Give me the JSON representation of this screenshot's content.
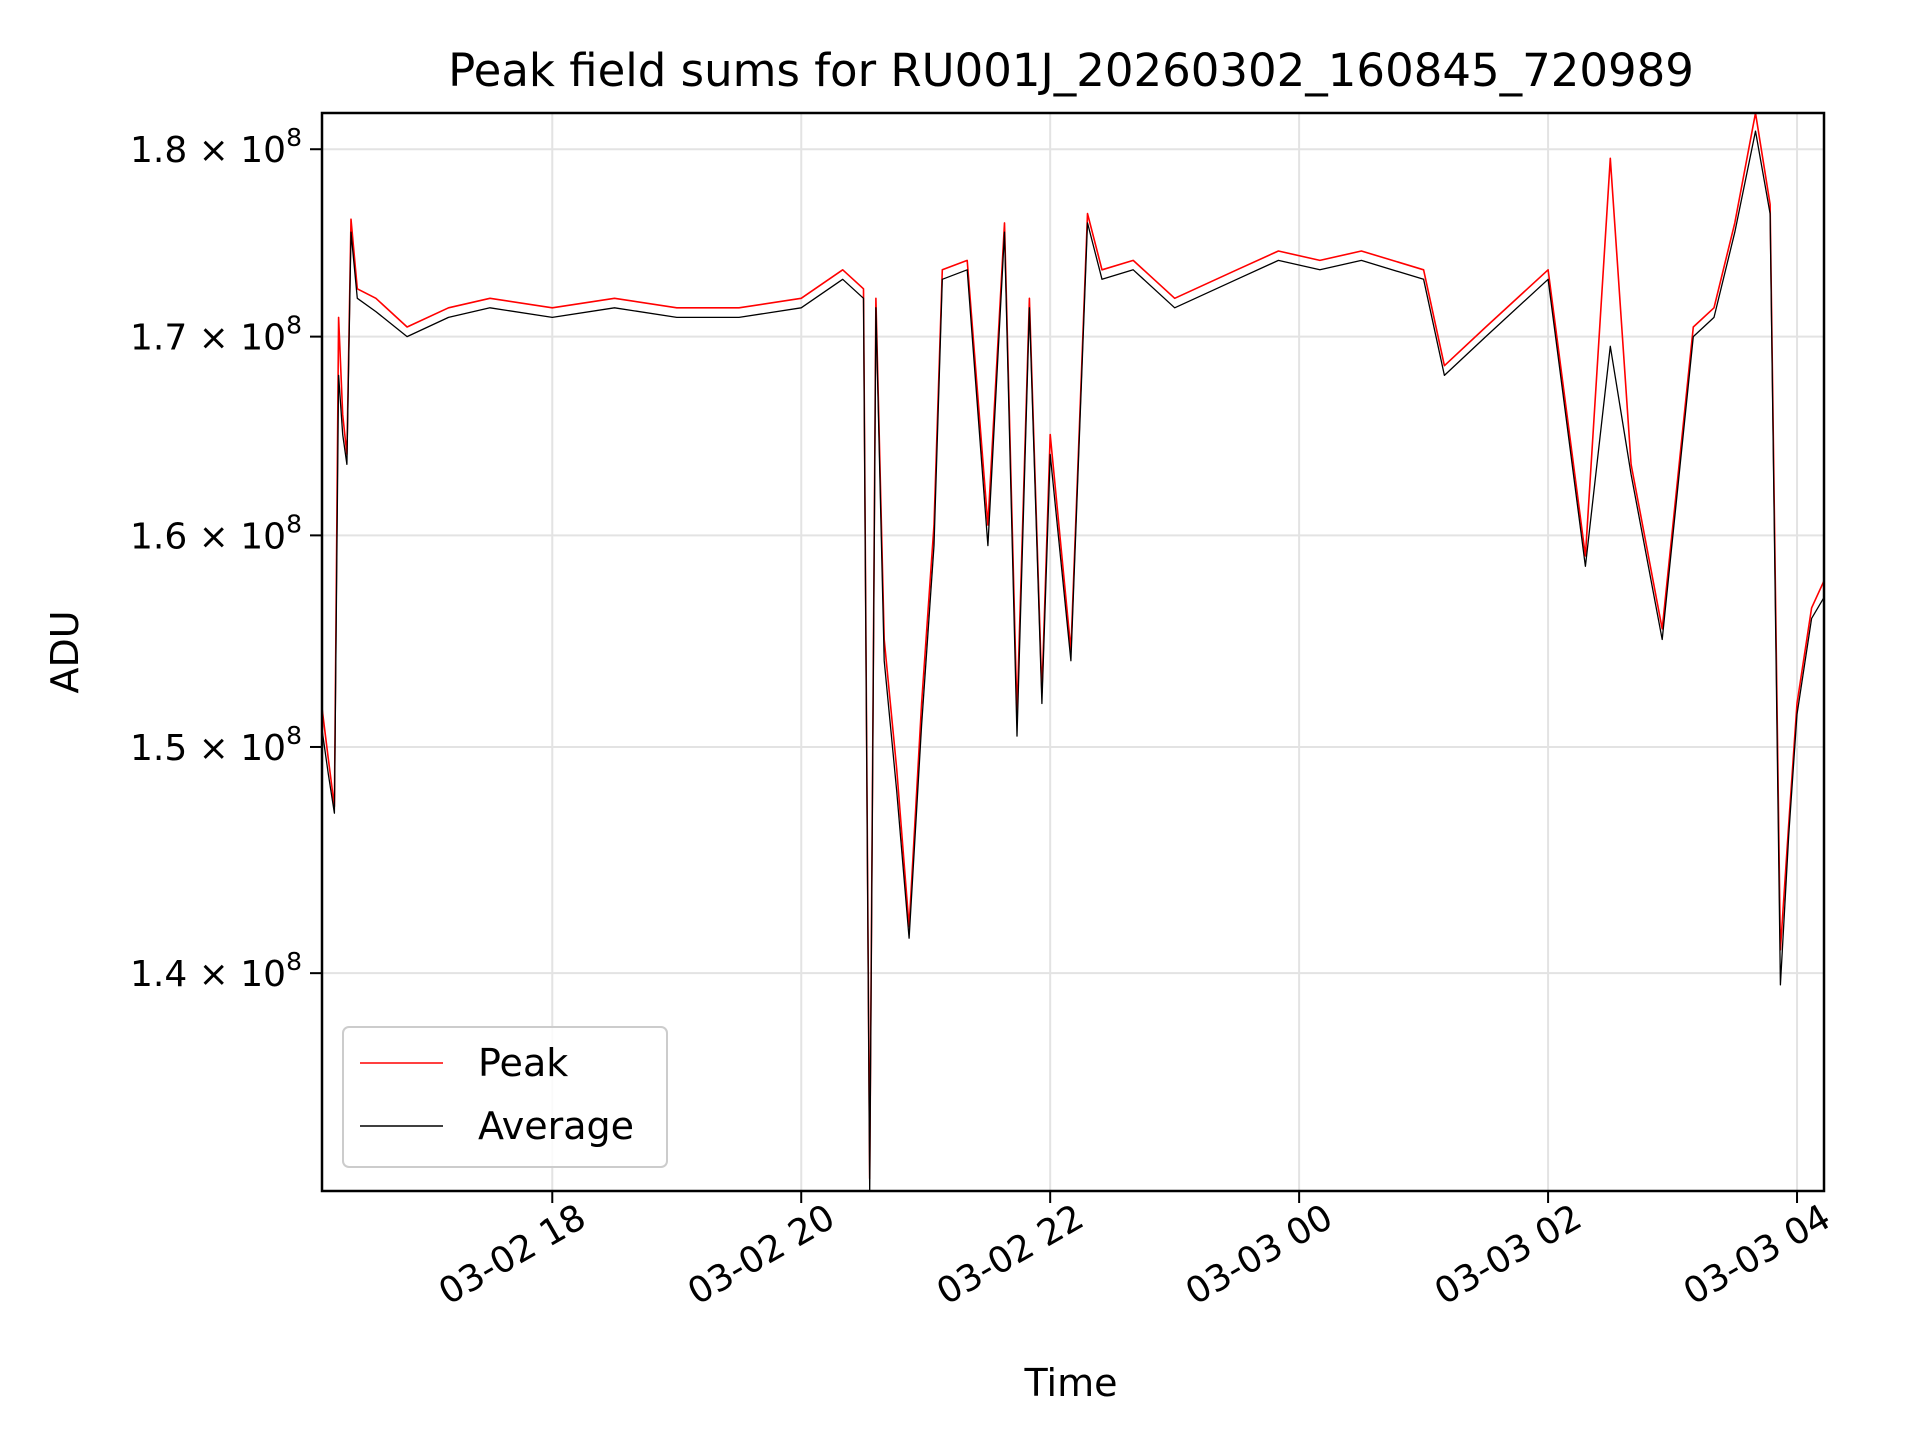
{
  "chart_data": {
    "type": "line",
    "title": "Peak field sums for RU001J_20260302_160845_720989",
    "xlabel": "Time",
    "ylabel": "ADU",
    "y_scale": "log",
    "xlim": [
      "2026-03-02 16:09",
      "2026-03-03 04:13"
    ],
    "ylim": [
      131000000,
      182000000
    ],
    "grid": true,
    "legend_position": "lower-left",
    "x_ticks": [
      {
        "value": "2026-03-02 18:00",
        "label": "03-02 18"
      },
      {
        "value": "2026-03-02 20:00",
        "label": "03-02 20"
      },
      {
        "value": "2026-03-02 22:00",
        "label": "03-02 22"
      },
      {
        "value": "2026-03-03 00:00",
        "label": "03-03 00"
      },
      {
        "value": "2026-03-03 02:00",
        "label": "03-03 02"
      },
      {
        "value": "2026-03-03 04:00",
        "label": "03-03 04"
      }
    ],
    "y_ticks": [
      {
        "value": 140000000,
        "mantissa": "1.4",
        "exponent": "8"
      },
      {
        "value": 150000000,
        "mantissa": "1.5",
        "exponent": "8"
      },
      {
        "value": 160000000,
        "mantissa": "1.6",
        "exponent": "8"
      },
      {
        "value": 170000000,
        "mantissa": "1.7",
        "exponent": "8"
      },
      {
        "value": 180000000,
        "mantissa": "1.8",
        "exponent": "8"
      }
    ],
    "series": [
      {
        "name": "Peak",
        "color": "#ff0000",
        "points": [
          [
            "2026-03-02 16:09",
            151800000
          ],
          [
            "2026-03-02 16:12",
            149500000
          ],
          [
            "2026-03-02 16:15",
            147300000
          ],
          [
            "2026-03-02 16:17",
            171000000
          ],
          [
            "2026-03-02 16:19",
            166000000
          ],
          [
            "2026-03-02 16:21",
            164000000
          ],
          [
            "2026-03-02 16:23",
            176200000
          ],
          [
            "2026-03-02 16:26",
            172500000
          ],
          [
            "2026-03-02 16:35",
            172000000
          ],
          [
            "2026-03-02 16:50",
            170500000
          ],
          [
            "2026-03-02 17:10",
            171500000
          ],
          [
            "2026-03-02 17:30",
            172000000
          ],
          [
            "2026-03-02 18:00",
            171500000
          ],
          [
            "2026-03-02 18:30",
            172000000
          ],
          [
            "2026-03-02 19:00",
            171500000
          ],
          [
            "2026-03-02 19:30",
            171500000
          ],
          [
            "2026-03-02 20:00",
            172000000
          ],
          [
            "2026-03-02 20:20",
            173500000
          ],
          [
            "2026-03-02 20:30",
            172500000
          ],
          [
            "2026-03-02 20:33",
            131500000
          ],
          [
            "2026-03-02 20:36",
            172000000
          ],
          [
            "2026-03-02 20:40",
            155000000
          ],
          [
            "2026-03-02 20:46",
            149000000
          ],
          [
            "2026-03-02 20:52",
            142000000
          ],
          [
            "2026-03-02 20:58",
            152000000
          ],
          [
            "2026-03-02 21:04",
            160500000
          ],
          [
            "2026-03-02 21:08",
            173500000
          ],
          [
            "2026-03-02 21:20",
            174000000
          ],
          [
            "2026-03-02 21:30",
            160500000
          ],
          [
            "2026-03-02 21:38",
            176000000
          ],
          [
            "2026-03-02 21:44",
            151500000
          ],
          [
            "2026-03-02 21:50",
            172000000
          ],
          [
            "2026-03-02 21:56",
            152500000
          ],
          [
            "2026-03-02 22:00",
            165000000
          ],
          [
            "2026-03-02 22:10",
            154500000
          ],
          [
            "2026-03-02 22:18",
            176500000
          ],
          [
            "2026-03-02 22:25",
            173500000
          ],
          [
            "2026-03-02 22:40",
            174000000
          ],
          [
            "2026-03-02 23:00",
            172000000
          ],
          [
            "2026-03-02 23:30",
            173500000
          ],
          [
            "2026-03-02 23:50",
            174500000
          ],
          [
            "2026-03-03 00:10",
            174000000
          ],
          [
            "2026-03-03 00:30",
            174500000
          ],
          [
            "2026-03-03 01:00",
            173500000
          ],
          [
            "2026-03-03 01:10",
            168500000
          ],
          [
            "2026-03-03 01:30",
            170500000
          ],
          [
            "2026-03-03 02:00",
            173500000
          ],
          [
            "2026-03-03 02:18",
            159000000
          ],
          [
            "2026-03-03 02:30",
            179500000
          ],
          [
            "2026-03-03 02:40",
            163500000
          ],
          [
            "2026-03-03 02:55",
            155500000
          ],
          [
            "2026-03-03 03:10",
            170500000
          ],
          [
            "2026-03-03 03:20",
            171500000
          ],
          [
            "2026-03-03 03:30",
            176000000
          ],
          [
            "2026-03-03 03:40",
            182000000
          ],
          [
            "2026-03-03 03:47",
            177000000
          ],
          [
            "2026-03-03 03:52",
            141000000
          ],
          [
            "2026-03-03 03:56",
            146500000
          ],
          [
            "2026-03-03 04:00",
            152000000
          ],
          [
            "2026-03-03 04:07",
            156500000
          ],
          [
            "2026-03-03 04:13",
            157800000
          ]
        ]
      },
      {
        "name": "Average",
        "color": "#000000",
        "points": [
          [
            "2026-03-02 16:09",
            150800000
          ],
          [
            "2026-03-02 16:12",
            148800000
          ],
          [
            "2026-03-02 16:15",
            147000000
          ],
          [
            "2026-03-02 16:17",
            168000000
          ],
          [
            "2026-03-02 16:19",
            165000000
          ],
          [
            "2026-03-02 16:21",
            163500000
          ],
          [
            "2026-03-02 16:23",
            175500000
          ],
          [
            "2026-03-02 16:26",
            172000000
          ],
          [
            "2026-03-02 16:35",
            171300000
          ],
          [
            "2026-03-02 16:50",
            170000000
          ],
          [
            "2026-03-02 17:10",
            171000000
          ],
          [
            "2026-03-02 17:30",
            171500000
          ],
          [
            "2026-03-02 18:00",
            171000000
          ],
          [
            "2026-03-02 18:30",
            171500000
          ],
          [
            "2026-03-02 19:00",
            171000000
          ],
          [
            "2026-03-02 19:30",
            171000000
          ],
          [
            "2026-03-02 20:00",
            171500000
          ],
          [
            "2026-03-02 20:20",
            173000000
          ],
          [
            "2026-03-02 20:30",
            172000000
          ],
          [
            "2026-03-02 20:33",
            131000000
          ],
          [
            "2026-03-02 20:36",
            171500000
          ],
          [
            "2026-03-02 20:40",
            154000000
          ],
          [
            "2026-03-02 20:46",
            148000000
          ],
          [
            "2026-03-02 20:52",
            141500000
          ],
          [
            "2026-03-02 20:58",
            151000000
          ],
          [
            "2026-03-02 21:04",
            159500000
          ],
          [
            "2026-03-02 21:08",
            173000000
          ],
          [
            "2026-03-02 21:20",
            173500000
          ],
          [
            "2026-03-02 21:30",
            159500000
          ],
          [
            "2026-03-02 21:38",
            175500000
          ],
          [
            "2026-03-02 21:44",
            150500000
          ],
          [
            "2026-03-02 21:50",
            171500000
          ],
          [
            "2026-03-02 21:56",
            152000000
          ],
          [
            "2026-03-02 22:00",
            164000000
          ],
          [
            "2026-03-02 22:10",
            154000000
          ],
          [
            "2026-03-02 22:18",
            176000000
          ],
          [
            "2026-03-02 22:25",
            173000000
          ],
          [
            "2026-03-02 22:40",
            173500000
          ],
          [
            "2026-03-02 23:00",
            171500000
          ],
          [
            "2026-03-02 23:30",
            173000000
          ],
          [
            "2026-03-02 23:50",
            174000000
          ],
          [
            "2026-03-03 00:10",
            173500000
          ],
          [
            "2026-03-03 00:30",
            174000000
          ],
          [
            "2026-03-03 01:00",
            173000000
          ],
          [
            "2026-03-03 01:10",
            168000000
          ],
          [
            "2026-03-03 01:30",
            170000000
          ],
          [
            "2026-03-03 02:00",
            173000000
          ],
          [
            "2026-03-03 02:18",
            158500000
          ],
          [
            "2026-03-03 02:30",
            169500000
          ],
          [
            "2026-03-03 02:40",
            163000000
          ],
          [
            "2026-03-03 02:55",
            155000000
          ],
          [
            "2026-03-03 03:10",
            170000000
          ],
          [
            "2026-03-03 03:20",
            171000000
          ],
          [
            "2026-03-03 03:30",
            175500000
          ],
          [
            "2026-03-03 03:40",
            181000000
          ],
          [
            "2026-03-03 03:47",
            176500000
          ],
          [
            "2026-03-03 03:52",
            139500000
          ],
          [
            "2026-03-03 03:56",
            146000000
          ],
          [
            "2026-03-03 04:00",
            151500000
          ],
          [
            "2026-03-03 04:07",
            156000000
          ],
          [
            "2026-03-03 04:13",
            157000000
          ]
        ]
      }
    ]
  }
}
